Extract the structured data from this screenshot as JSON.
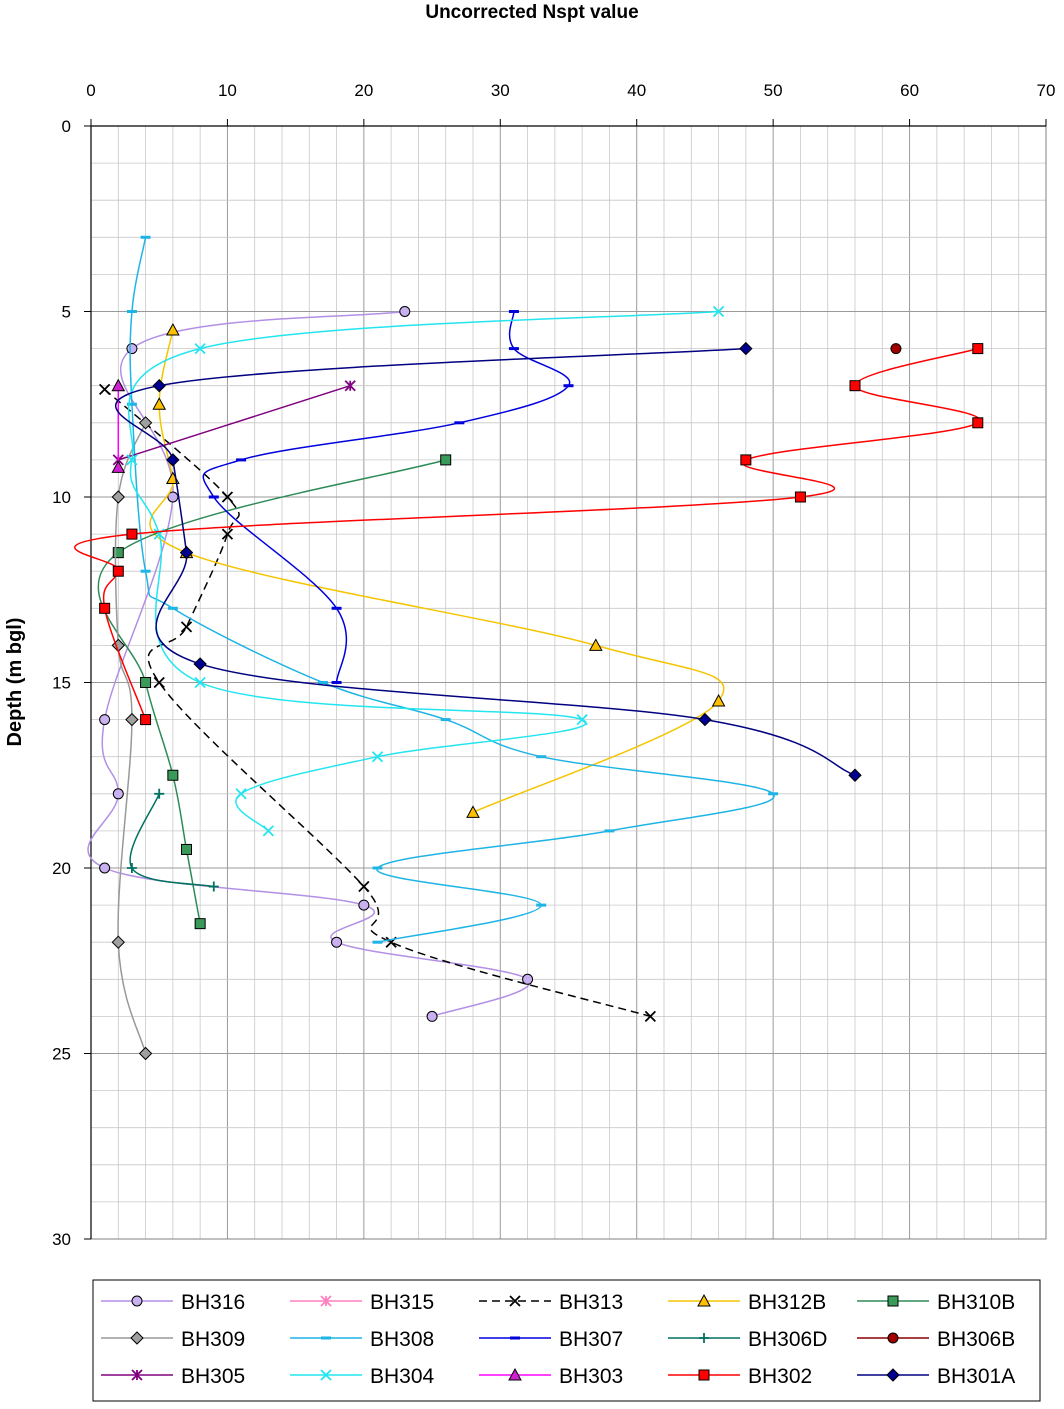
{
  "chart_data": {
    "type": "line",
    "title": "Uncorrected Nspt value",
    "xlabel": "",
    "ylabel": "Depth (m bgl)",
    "xlim": [
      0,
      70
    ],
    "ylim": [
      0,
      30
    ],
    "y_inverted": true,
    "x_axis_position": "top",
    "xticks": [
      0,
      10,
      20,
      30,
      40,
      50,
      60,
      70
    ],
    "yticks": [
      0,
      5,
      10,
      15,
      20,
      25,
      30
    ],
    "grid": "major and minor",
    "legend_position": "bottom",
    "series": [
      {
        "name": "BH316",
        "color": "#B38FE6",
        "marker": "circle",
        "marker_fill": "#C9B0F0",
        "dash": "",
        "points": [
          [
            23,
            5
          ],
          [
            3,
            6
          ],
          [
            6,
            10
          ],
          [
            1,
            16
          ],
          [
            2,
            18
          ],
          [
            1,
            20
          ],
          [
            20,
            21
          ],
          [
            18,
            22
          ],
          [
            32,
            23
          ],
          [
            25,
            24
          ]
        ]
      },
      {
        "name": "BH315",
        "color": "#FF80C0",
        "marker": "star",
        "marker_fill": "#FF80C0",
        "dash": "",
        "points": []
      },
      {
        "name": "BH313",
        "color": "#000000",
        "marker": "x",
        "marker_fill": "#000000",
        "dash": "8,5",
        "points": [
          [
            1,
            7.1
          ],
          [
            10,
            10
          ],
          [
            10,
            11
          ],
          [
            7,
            13.5
          ],
          [
            5,
            15
          ],
          [
            20,
            20.5
          ],
          [
            22,
            22
          ],
          [
            41,
            24
          ]
        ]
      },
      {
        "name": "BH312B",
        "color": "#F5C400",
        "marker": "triangle",
        "marker_fill": "#FFC000",
        "dash": "",
        "points": [
          [
            6,
            5.5
          ],
          [
            5,
            7.5
          ],
          [
            6,
            9.5
          ],
          [
            7,
            11.5
          ],
          [
            37,
            14
          ],
          [
            46,
            15.5
          ],
          [
            28,
            18.5
          ]
        ]
      },
      {
        "name": "BH310B",
        "color": "#2E8B57",
        "marker": "square",
        "marker_fill": "#3A9A5A",
        "dash": "",
        "points": [
          [
            26,
            9
          ],
          [
            2,
            11.5
          ],
          [
            4,
            15
          ],
          [
            6,
            17.5
          ],
          [
            7,
            19.5
          ],
          [
            8,
            21.5
          ]
        ]
      },
      {
        "name": "BH309",
        "color": "#999999",
        "marker": "diamond",
        "marker_fill": "#A0A0A0",
        "dash": "",
        "points": [
          [
            4,
            8
          ],
          [
            2,
            10
          ],
          [
            2,
            14
          ],
          [
            3,
            16
          ],
          [
            2,
            22
          ],
          [
            4,
            25
          ]
        ]
      },
      {
        "name": "BH308",
        "color": "#1EB4E6",
        "marker": "dash",
        "marker_fill": "#1EB4E6",
        "dash": "",
        "points": [
          [
            4,
            3
          ],
          [
            3,
            5
          ],
          [
            3,
            7.5
          ],
          [
            4,
            12
          ],
          [
            6,
            13
          ],
          [
            17,
            15
          ],
          [
            26,
            16
          ],
          [
            33,
            17
          ],
          [
            50,
            18
          ],
          [
            38,
            19
          ],
          [
            21,
            20
          ],
          [
            33,
            21
          ],
          [
            21,
            22
          ]
        ]
      },
      {
        "name": "BH307",
        "color": "#0000DD",
        "marker": "dash",
        "marker_fill": "#0000DD",
        "dash": "",
        "points": [
          [
            31,
            5
          ],
          [
            31,
            6
          ],
          [
            35,
            7
          ],
          [
            27,
            8
          ],
          [
            11,
            9
          ],
          [
            9,
            10
          ],
          [
            18,
            13
          ],
          [
            18,
            15
          ]
        ]
      },
      {
        "name": "BH306D",
        "color": "#007060",
        "marker": "plus",
        "marker_fill": "#007060",
        "dash": "",
        "points": [
          [
            5,
            18
          ],
          [
            3,
            20
          ],
          [
            9,
            20.5
          ]
        ]
      },
      {
        "name": "BH306B",
        "color": "#8B0000",
        "marker": "circle",
        "marker_fill": "#A00000",
        "dash": "",
        "points": [
          [
            59,
            6
          ]
        ]
      },
      {
        "name": "BH305",
        "color": "#800080",
        "marker": "star",
        "marker_fill": "#800080",
        "dash": "",
        "points": [
          [
            19,
            7
          ],
          [
            2,
            9
          ]
        ]
      },
      {
        "name": "BH304",
        "color": "#22E5F0",
        "marker": "x",
        "marker_fill": "#22E5F0",
        "dash": "",
        "points": [
          [
            46,
            5
          ],
          [
            8,
            6
          ],
          [
            3,
            9
          ],
          [
            5,
            11
          ],
          [
            8,
            15
          ],
          [
            36,
            16
          ],
          [
            21,
            17
          ],
          [
            11,
            18
          ],
          [
            13,
            19
          ]
        ]
      },
      {
        "name": "BH303",
        "color": "#FF00FF",
        "marker": "triangle",
        "marker_fill": "#D020D0",
        "dash": "",
        "points": [
          [
            2,
            7
          ],
          [
            2,
            9.2
          ]
        ]
      },
      {
        "name": "BH302",
        "color": "#FF0000",
        "marker": "square",
        "marker_fill": "#FF0000",
        "dash": "",
        "points": [
          [
            65,
            6
          ],
          [
            56,
            7
          ],
          [
            65,
            8
          ],
          [
            48,
            9
          ],
          [
            52,
            10
          ],
          [
            3,
            11
          ],
          [
            2,
            12
          ],
          [
            1,
            13
          ],
          [
            4,
            16
          ]
        ]
      },
      {
        "name": "BH301A",
        "color": "#000080",
        "marker": "diamond",
        "marker_fill": "#000090",
        "dash": "",
        "points": [
          [
            48,
            6
          ],
          [
            5,
            7
          ],
          [
            6,
            9
          ],
          [
            7,
            11.5
          ],
          [
            8,
            14.5
          ],
          [
            45,
            16
          ],
          [
            56,
            17.5
          ]
        ]
      }
    ]
  }
}
